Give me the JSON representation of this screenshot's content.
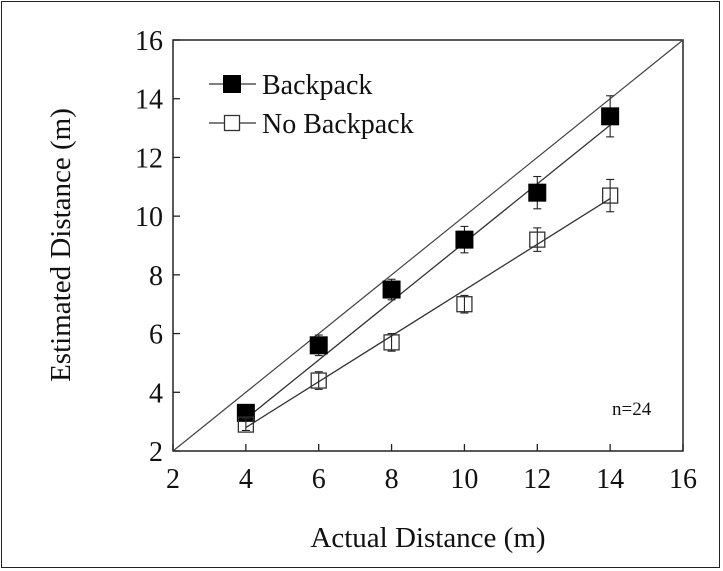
{
  "chart_data": {
    "type": "scatter",
    "xlabel": "Actual Distance  (m)",
    "ylabel": "Estimated Distance  (m)",
    "xlim": [
      2,
      16
    ],
    "ylim": [
      2,
      16
    ],
    "xticks": [
      2,
      4,
      6,
      8,
      10,
      12,
      14,
      16
    ],
    "yticks": [
      2,
      4,
      6,
      8,
      10,
      12,
      14,
      16
    ],
    "grid": false,
    "legend_position": "top-left",
    "annotation": "n=24",
    "reference_line": {
      "from": [
        2,
        2
      ],
      "to": [
        16,
        16
      ]
    },
    "series": [
      {
        "name": "Backpack",
        "marker": "filled-square",
        "x": [
          4,
          6,
          8,
          10,
          12,
          14
        ],
        "y": [
          3.3,
          5.6,
          7.5,
          9.2,
          10.8,
          13.4
        ],
        "error": [
          0.25,
          0.35,
          0.35,
          0.45,
          0.55,
          0.7
        ],
        "fit": {
          "x": [
            4,
            14
          ],
          "y": [
            3.1,
            13.1
          ]
        }
      },
      {
        "name": "No Backpack",
        "marker": "open-square",
        "x": [
          4,
          6,
          8,
          10,
          12,
          14
        ],
        "y": [
          2.9,
          4.4,
          5.7,
          7.0,
          9.2,
          10.7
        ],
        "error": [
          0.2,
          0.3,
          0.3,
          0.3,
          0.4,
          0.55
        ],
        "fit": {
          "x": [
            4,
            14
          ],
          "y": [
            2.8,
            10.6
          ]
        }
      }
    ]
  }
}
